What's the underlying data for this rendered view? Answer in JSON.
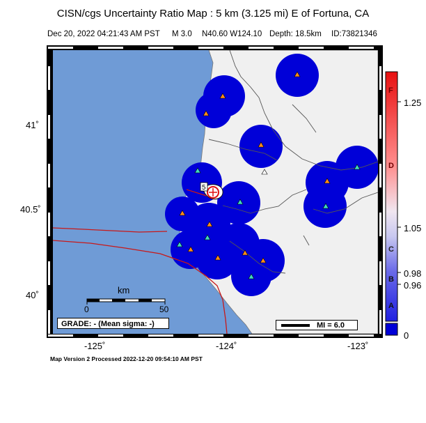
{
  "header": {
    "title": "CISN/cgs Uncertainty Ratio Map : 5 km (3.125 mi) E of Fortuna, CA",
    "datetime": "Dec 20, 2022 04:21:43 AM PST",
    "magnitude": "M 3.0",
    "location": "N40.60 W124.10",
    "depth": "Depth: 18.5km",
    "event_id": "ID:73821346"
  },
  "axes": {
    "lat_labels": [
      "41˚",
      "40.5˚",
      "40˚"
    ],
    "lon_labels": [
      "-125˚",
      "-124˚",
      "-123˚"
    ]
  },
  "scale_bar": {
    "unit": "km",
    "ticks": [
      "0",
      "50"
    ]
  },
  "grade": "GRADE: - (Mean sigma: -)",
  "mi_legend": "MI = 6.0",
  "epicenter_label": "5",
  "colorbar": {
    "value_labels": [
      "1.25",
      "1.05",
      "0.98",
      "0.96",
      "0"
    ],
    "letters": [
      "F",
      "D",
      "C",
      "B",
      "A"
    ]
  },
  "colors": {
    "ocean": "#6f9bd6",
    "land": "#f0f0f0",
    "uncertainty_fill": "#0000d8",
    "station_orange": "#ff8c1a",
    "station_cyan": "#40d8c0",
    "fault": "#c81818",
    "epicenter": "#e01010"
  },
  "footer": "Map Version 2 Processed 2022-12-20 09:54:10 AM PST"
}
